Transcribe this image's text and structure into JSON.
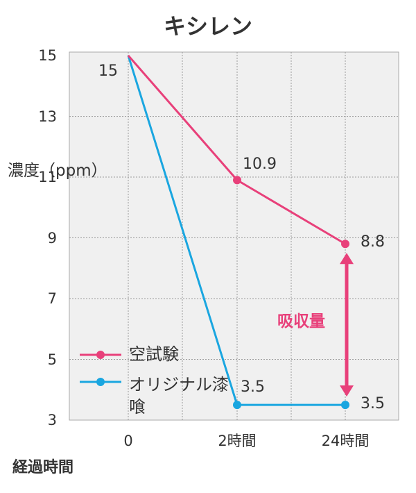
{
  "chart_data": {
    "type": "line",
    "title": "キシレン",
    "ylabel": "濃度（ppm）",
    "xlabel": "経過時間",
    "categories": [
      "0",
      "2時間",
      "24時間"
    ],
    "ylim": [
      3,
      15
    ],
    "yticks": [
      3,
      5,
      7,
      9,
      11,
      13,
      15
    ],
    "grid": true,
    "legend_position": "bottom-left",
    "series": [
      {
        "name": "空試験",
        "values": [
          15,
          10.9,
          8.8
        ],
        "data_labels": [
          "15",
          "10.9",
          "8.8"
        ],
        "color": "#e8407a"
      },
      {
        "name": "オリジナル漆喰",
        "values": [
          15,
          3.5,
          3.5
        ],
        "data_labels": [
          "",
          "3.5",
          "3.5"
        ],
        "color": "#1aa6e0"
      }
    ],
    "annotation": {
      "text": "吸収量",
      "color": "#e8407a"
    }
  }
}
